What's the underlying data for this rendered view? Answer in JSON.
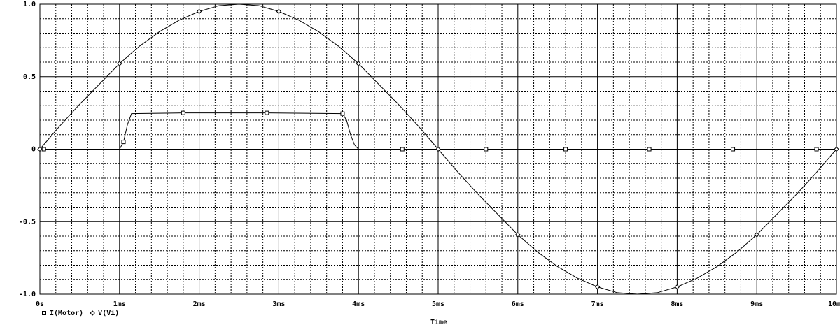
{
  "chart_data": {
    "type": "line",
    "x_label": "Time",
    "xlim": [
      0,
      10
    ],
    "ylim": [
      -1,
      1
    ],
    "xticks": [
      {
        "value": 0,
        "label": "0s"
      },
      {
        "value": 1,
        "label": "1ms"
      },
      {
        "value": 2,
        "label": "2ms"
      },
      {
        "value": 3,
        "label": "3ms"
      },
      {
        "value": 4,
        "label": "4ms"
      },
      {
        "value": 5,
        "label": "5ms"
      },
      {
        "value": 6,
        "label": "6ms"
      },
      {
        "value": 7,
        "label": "7ms"
      },
      {
        "value": 8,
        "label": "8ms"
      },
      {
        "value": 9,
        "label": "9ms"
      },
      {
        "value": 10,
        "label": "10ms"
      }
    ],
    "yticks": [
      {
        "value": -1,
        "label": "-1.0"
      },
      -0.5,
      0,
      0.5,
      {
        "value": 1,
        "label": "1.0"
      }
    ],
    "grid": true,
    "series": [
      {
        "name": "I(Motor)",
        "color": "#000000",
        "marker": "square",
        "x": [
          0,
          0.05,
          1,
          1.05,
          1.1,
          1.15,
          1.8,
          2.85,
          3.8,
          3.85,
          3.9,
          3.95,
          4.0,
          4.55,
          5.6,
          6.6,
          7.65,
          8.7,
          9.75,
          10
        ],
        "values": [
          0,
          0,
          0,
          0.05,
          0.17,
          0.245,
          0.25,
          0.25,
          0.245,
          0.2,
          0.1,
          0.03,
          0,
          0,
          0,
          0,
          0,
          0,
          0,
          0
        ]
      },
      {
        "name": "V(Vi)",
        "color": "#000000",
        "marker": "diamond",
        "x": [
          0,
          0.25,
          0.5,
          0.75,
          1,
          1.25,
          1.5,
          1.75,
          2,
          2.25,
          2.5,
          2.75,
          3,
          3.25,
          3.5,
          3.75,
          4,
          4.25,
          4.5,
          4.75,
          5,
          5.25,
          5.5,
          5.75,
          6,
          6.25,
          6.5,
          6.75,
          7,
          7.25,
          7.5,
          7.75,
          8,
          8.25,
          8.5,
          8.75,
          9,
          9.25,
          9.5,
          9.75,
          10
        ],
        "values": [
          0,
          0.16,
          0.31,
          0.45,
          0.59,
          0.71,
          0.81,
          0.89,
          0.95,
          0.99,
          1,
          0.99,
          0.95,
          0.89,
          0.81,
          0.71,
          0.59,
          0.45,
          0.31,
          0.16,
          0,
          -0.16,
          -0.31,
          -0.45,
          -0.59,
          -0.71,
          -0.81,
          -0.89,
          -0.95,
          -0.99,
          -1,
          -0.99,
          -0.95,
          -0.89,
          -0.81,
          -0.71,
          -0.59,
          -0.45,
          -0.31,
          -0.16,
          0
        ]
      }
    ]
  }
}
